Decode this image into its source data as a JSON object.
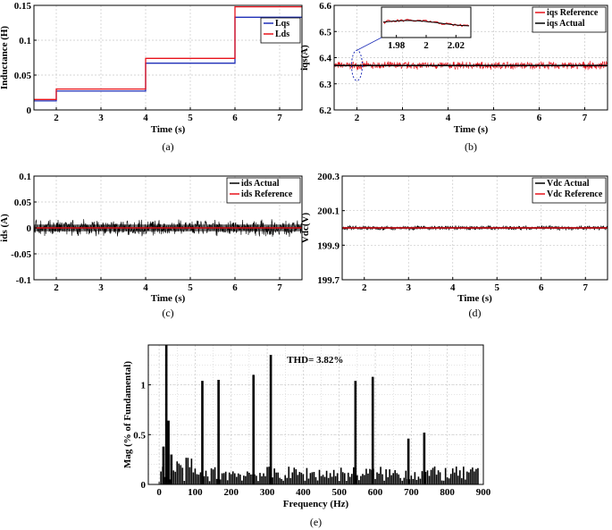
{
  "colors": {
    "red": "#e8121b",
    "blue": "#1f2fb8",
    "black": "#000000",
    "grid": "#c8c8c8"
  },
  "chart_data": [
    {
      "id": "a",
      "type": "line",
      "panel_label": "(a)",
      "xlabel": "Time (s)",
      "ylabel": "Inductance (H)",
      "xlim": [
        1.5,
        7.5
      ],
      "ylim": [
        0,
        0.15
      ],
      "xticks": [
        2,
        3,
        4,
        5,
        6,
        7
      ],
      "yticks": [
        0,
        0.05,
        0.1,
        0.15
      ],
      "ytick_labels": [
        "0",
        "0.05",
        "0.1",
        "0.15"
      ],
      "legend": "top-right",
      "series": [
        {
          "name": "Lqs",
          "color": "blue",
          "x": [
            1.5,
            2,
            2,
            4,
            4,
            6,
            6,
            7.5
          ],
          "y": [
            0.013,
            0.013,
            0.027,
            0.027,
            0.067,
            0.067,
            0.133,
            0.133
          ]
        },
        {
          "name": "Lds",
          "color": "red",
          "x": [
            1.5,
            2,
            2,
            4,
            4,
            6,
            6,
            7.5
          ],
          "y": [
            0.015,
            0.015,
            0.03,
            0.03,
            0.074,
            0.074,
            0.148,
            0.148
          ]
        }
      ]
    },
    {
      "id": "b",
      "type": "line",
      "panel_label": "(b)",
      "xlabel": "Time (s)",
      "ylabel": "iqs(A)",
      "xlim": [
        1.5,
        7.5
      ],
      "ylim": [
        6.2,
        6.6
      ],
      "xticks": [
        2,
        3,
        4,
        5,
        6,
        7
      ],
      "yticks": [
        6.2,
        6.3,
        6.4,
        6.5,
        6.6
      ],
      "ytick_labels": [
        "6.2",
        "6.3",
        "6.4",
        "6.5",
        "6.6"
      ],
      "legend": "top-right",
      "series": [
        {
          "name": "iqs Reference",
          "color": "red",
          "mean": 6.37,
          "noise": 0.012
        },
        {
          "name": "iqs Actual",
          "color": "black",
          "mean": 6.37,
          "noise": 0.0
        }
      ],
      "inset": {
        "xlim": [
          1.97,
          2.03
        ],
        "xticks": [
          1.98,
          2,
          2.02
        ],
        "xtick_labels": [
          "1.98",
          "2",
          "2.02"
        ]
      }
    },
    {
      "id": "c",
      "type": "line",
      "panel_label": "(c)",
      "xlabel": "Time (s)",
      "ylabel": "ids (A)",
      "xlim": [
        1.5,
        7.5
      ],
      "ylim": [
        -0.1,
        0.1
      ],
      "xticks": [
        2,
        3,
        4,
        5,
        6,
        7
      ],
      "yticks": [
        -0.1,
        -0.05,
        0,
        0.05,
        0.1
      ],
      "ytick_labels": [
        "-0.1",
        "-0.05",
        "0",
        "0.05",
        "0.1"
      ],
      "legend": "top-right",
      "series": [
        {
          "name": "ids Actual",
          "color": "black",
          "mean": 0,
          "noise": 0.012
        },
        {
          "name": "ids Reference",
          "color": "red",
          "mean": 0,
          "noise": 0.0
        }
      ]
    },
    {
      "id": "d",
      "type": "line",
      "panel_label": "(d)",
      "xlabel": "Time (s)",
      "ylabel": "Vdc(V)",
      "xlim": [
        1.5,
        7.5
      ],
      "ylim": [
        199.7,
        200.3
      ],
      "xticks": [
        2,
        3,
        4,
        5,
        6,
        7
      ],
      "yticks": [
        199.7,
        199.9,
        200.1,
        200.3
      ],
      "ytick_labels": [
        "199.7",
        "199.9",
        "200.1",
        "200.3"
      ],
      "legend": "top-right",
      "series": [
        {
          "name": "Vdc Actual",
          "color": "black",
          "mean": 200.0,
          "noise": 0.01
        },
        {
          "name": "Vdc Reference",
          "color": "red",
          "mean": 200.0,
          "noise": 0.0
        }
      ]
    },
    {
      "id": "e",
      "type": "bar",
      "panel_label": "(e)",
      "xlabel": "Frequency (Hz)",
      "ylabel": "Mag (% of Fundamental)",
      "xlim": [
        -30,
        900
      ],
      "ylim": [
        0,
        1.4
      ],
      "xticks": [
        0,
        100,
        200,
        300,
        400,
        500,
        600,
        700,
        800,
        900
      ],
      "yticks": [
        0,
        0.5,
        1
      ],
      "ytick_labels": [
        "0",
        "0.5",
        "1"
      ],
      "annotation": "THD= 3.82%",
      "peaks": [
        {
          "f": 20,
          "v": 1.4
        },
        {
          "f": 26,
          "v": 0.64
        },
        {
          "f": 120,
          "v": 1.04
        },
        {
          "f": 165,
          "v": 1.05
        },
        {
          "f": 262,
          "v": 1.1
        },
        {
          "f": 310,
          "v": 1.3
        },
        {
          "f": 545,
          "v": 1.04
        },
        {
          "f": 593,
          "v": 1.08
        },
        {
          "f": 692,
          "v": 0.46
        },
        {
          "f": 736,
          "v": 0.52
        },
        {
          "f": 12,
          "v": 0.38
        },
        {
          "f": 34,
          "v": 0.3
        }
      ]
    }
  ]
}
